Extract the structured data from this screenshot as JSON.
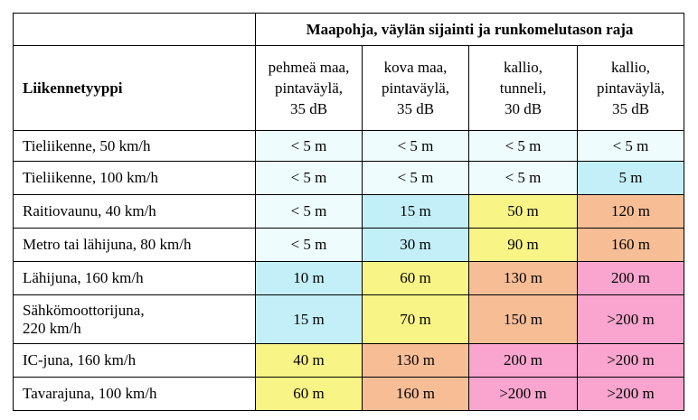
{
  "table": {
    "row_header_label": "Liikennetyyppi",
    "group_header": "Maapohja, väylän sijainti ja runkomelutason raja",
    "columns": [
      [
        "pehmeä maa,",
        "pintaväylä,",
        "35 dB"
      ],
      [
        "kova maa,",
        "pintaväylä,",
        "35 dB"
      ],
      [
        "kallio,",
        "tunneli,",
        "30 dB"
      ],
      [
        "kallio,",
        "pintaväylä,",
        "35 dB"
      ]
    ],
    "colors": {
      "lightblue": "#eefcfd",
      "cyan": "#c3eff8",
      "yellow": "#f9f486",
      "orange": "#f7be96",
      "pink": "#f9a5cf"
    },
    "rows": [
      {
        "label": [
          "Tieliikenne, 50 km/h"
        ],
        "values": [
          "< 5 m",
          "< 5 m",
          "< 5 m",
          "< 5 m"
        ],
        "fills": [
          "lightblue",
          "lightblue",
          "lightblue",
          "lightblue"
        ]
      },
      {
        "label": [
          "Tieliikenne, 100 km/h"
        ],
        "values": [
          "< 5 m",
          "< 5 m",
          "< 5 m",
          "5 m"
        ],
        "fills": [
          "lightblue",
          "lightblue",
          "lightblue",
          "cyan"
        ]
      },
      {
        "label": [
          "Raitiovaunu, 40 km/h"
        ],
        "values": [
          "< 5 m",
          "15 m",
          "50 m",
          "120 m"
        ],
        "fills": [
          "lightblue",
          "cyan",
          "yellow",
          "orange"
        ]
      },
      {
        "label": [
          "Metro tai lähijuna, 80 km/h"
        ],
        "values": [
          "< 5 m",
          "30 m",
          "90 m",
          "160 m"
        ],
        "fills": [
          "lightblue",
          "cyan",
          "yellow",
          "orange"
        ]
      },
      {
        "label": [
          "Lähijuna, 160 km/h"
        ],
        "values": [
          "10 m",
          "60 m",
          "130 m",
          "200 m"
        ],
        "fills": [
          "cyan",
          "yellow",
          "orange",
          "pink"
        ]
      },
      {
        "label": [
          "Sähkömoottorijuna,",
          "220 km/h"
        ],
        "values": [
          "15 m",
          "70 m",
          "150 m",
          ">200 m"
        ],
        "fills": [
          "cyan",
          "yellow",
          "orange",
          "pink"
        ]
      },
      {
        "label": [
          "IC-juna, 160 km/h"
        ],
        "values": [
          "40 m",
          "130 m",
          "200 m",
          ">200 m"
        ],
        "fills": [
          "yellow",
          "orange",
          "pink",
          "pink"
        ]
      },
      {
        "label": [
          "Tavarajuna, 100 km/h"
        ],
        "values": [
          "60 m",
          "160 m",
          ">200 m",
          ">200 m"
        ],
        "fills": [
          "yellow",
          "orange",
          "pink",
          "pink"
        ]
      }
    ]
  }
}
